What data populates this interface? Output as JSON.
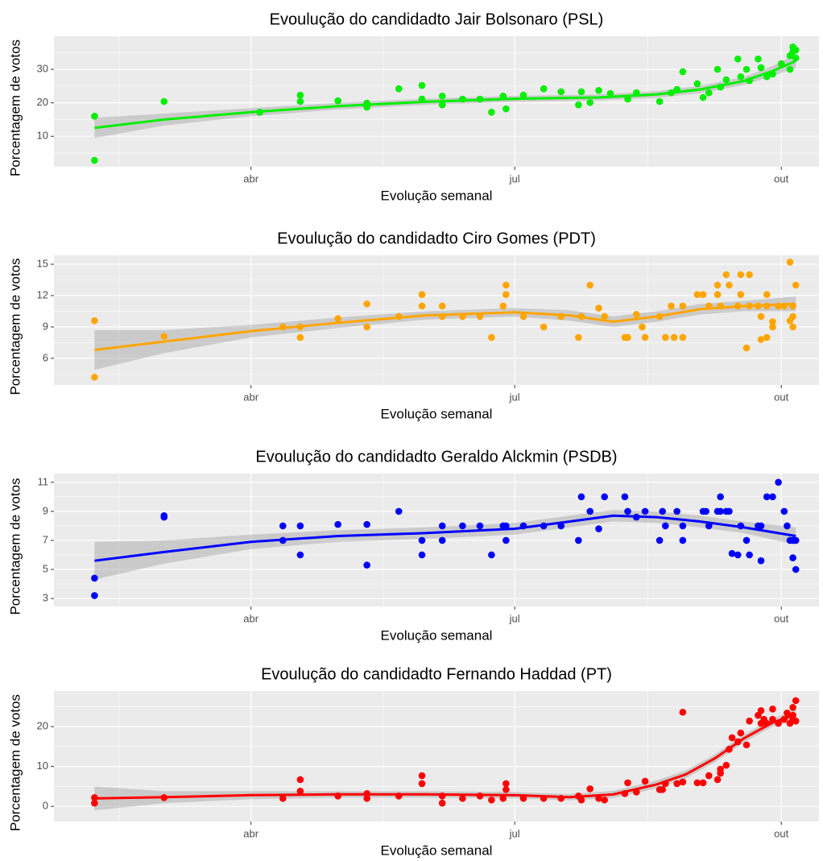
{
  "chart_data": [
    {
      "type": "scatter",
      "title": "Evoulução do candidadto Jair Bolsonaro (PSL)",
      "x_label": "Evolução semanal",
      "y_label": "Porcentagem de votos",
      "color": "#00ee00",
      "x": [
        36,
        36,
        60,
        93,
        107,
        107,
        120,
        130,
        130,
        141,
        149,
        149,
        156,
        156,
        163,
        169,
        173,
        177,
        178,
        184,
        191,
        197,
        203,
        204,
        207,
        210,
        214,
        220,
        223,
        231,
        235,
        239,
        237,
        244,
        246,
        248,
        251,
        252,
        254,
        258,
        259,
        261,
        262,
        265,
        266,
        268,
        270,
        273,
        276,
        276,
        277,
        278,
        278,
        277
      ],
      "values": [
        16,
        2.8,
        20.4,
        17.2,
        22.3,
        20.4,
        20.6,
        19.9,
        18.7,
        24.2,
        25.2,
        21.1,
        22,
        19.4,
        21.1,
        21.1,
        17.2,
        22,
        18.2,
        22.3,
        24.2,
        23.3,
        19.4,
        23.3,
        20.1,
        23.7,
        22.8,
        21.1,
        23,
        20.4,
        23,
        29.3,
        24,
        25.7,
        21.6,
        23,
        30,
        24.7,
        26.9,
        33.1,
        27.8,
        30,
        26.6,
        33.1,
        30.5,
        27.8,
        28.6,
        31.7,
        30,
        34.1,
        36.7,
        35.8,
        33.4,
        35.3
      ],
      "trend": {
        "x": [
          36,
          60,
          90,
          120,
          150,
          181,
          210,
          230,
          245,
          260,
          270,
          278
        ],
        "values": [
          12.5,
          15,
          17.2,
          19,
          20.3,
          21.2,
          21.6,
          22.5,
          24,
          26.5,
          29.5,
          32.5
        ],
        "lower": [
          9.5,
          13.2,
          16,
          18,
          19.4,
          20.3,
          20.7,
          21.5,
          22.9,
          25.3,
          28,
          30.5
        ],
        "upper": [
          15.5,
          16.8,
          18.4,
          20,
          21.2,
          22.1,
          22.5,
          23.5,
          25.1,
          27.7,
          31,
          34.5
        ]
      },
      "xlim": [
        22,
        286
      ],
      "xticks": [
        {
          "value": 90,
          "label": "abr"
        },
        {
          "value": 181,
          "label": "jul"
        },
        {
          "value": 273,
          "label": "out"
        }
      ],
      "ylim": [
        0.9,
        39.9
      ],
      "yticks": [
        10,
        20,
        30
      ],
      "grid": true
    },
    {
      "type": "scatter",
      "title": "Evoulução do candidadto Ciro Gomes (PDT)",
      "x_label": "Evolução semanal",
      "y_label": "Porcentagem de votos",
      "color": "#ffa500",
      "x": [
        36,
        36,
        60,
        101,
        107,
        107,
        120,
        130,
        130,
        141,
        149,
        149,
        156,
        156,
        163,
        169,
        173,
        177,
        178,
        178,
        184,
        191,
        197,
        203,
        204,
        207,
        210,
        212,
        219,
        220,
        223,
        225,
        226,
        231,
        233,
        235,
        236,
        239,
        239,
        244,
        246,
        248,
        251,
        251,
        252,
        254,
        255,
        258,
        259,
        259,
        261,
        262,
        262,
        265,
        266,
        266,
        268,
        268,
        268,
        270,
        270,
        272,
        274,
        276,
        277,
        277,
        277,
        278,
        276
      ],
      "values": [
        9.6,
        4.2,
        8.1,
        9,
        9,
        8,
        9.8,
        11.2,
        9,
        10,
        12.1,
        11,
        11,
        10,
        10,
        10,
        8,
        11,
        13,
        12.1,
        10,
        9,
        10,
        8,
        10,
        13,
        10.8,
        10,
        8,
        8,
        10.2,
        9,
        8,
        10,
        8,
        11,
        8,
        8,
        11,
        12.1,
        12.1,
        11,
        13,
        12.1,
        11,
        14,
        13,
        11,
        14,
        12.1,
        7,
        14,
        11,
        11,
        10,
        7.8,
        8,
        11,
        12.1,
        9.5,
        9,
        11,
        11,
        15.2,
        10,
        9,
        11,
        13,
        9.6
      ],
      "trend": {
        "x": [
          36,
          60,
          90,
          120,
          150,
          181,
          200,
          215,
          230,
          245,
          260,
          278
        ],
        "values": [
          6.8,
          7.6,
          8.6,
          9.4,
          10.1,
          10.4,
          10.1,
          9.5,
          10,
          10.7,
          11,
          11.2
        ],
        "lower": [
          4.9,
          6.5,
          8,
          8.9,
          9.7,
          10,
          9.6,
          9,
          9.5,
          10.2,
          10.5,
          10.5
        ],
        "upper": [
          8.7,
          8.7,
          9.2,
          9.9,
          10.5,
          10.8,
          10.6,
          10,
          10.5,
          11.2,
          11.5,
          11.9
        ]
      },
      "xlim": [
        22,
        286
      ],
      "xticks": [
        {
          "value": 90,
          "label": "abr"
        },
        {
          "value": 181,
          "label": "jul"
        },
        {
          "value": 273,
          "label": "out"
        }
      ],
      "ylim": [
        3.45,
        15.85
      ],
      "yticks": [
        6,
        9,
        12,
        15
      ],
      "grid": true
    },
    {
      "type": "scatter",
      "title": "Evoulução do candidadto Geraldo Alckmin (PSDB)",
      "x_label": "Evolução semanal",
      "y_label": "Porcentagem de votos",
      "color": "#0000ff",
      "x": [
        36,
        36,
        60,
        60,
        101,
        101,
        107,
        107,
        120,
        130,
        130,
        141,
        149,
        149,
        156,
        156,
        163,
        169,
        173,
        177,
        178,
        178,
        184,
        191,
        197,
        203,
        204,
        207,
        210,
        212,
        219,
        220,
        223,
        226,
        231,
        232,
        233,
        237,
        239,
        239,
        246,
        247,
        248,
        251,
        252,
        252,
        254,
        255,
        256,
        258,
        259,
        261,
        262,
        265,
        266,
        266,
        268,
        270,
        272,
        274,
        275,
        276,
        277,
        277,
        278,
        278
      ],
      "values": [
        4.4,
        3.2,
        8.7,
        8.6,
        7,
        8,
        8,
        6,
        8.1,
        8.1,
        5.3,
        9,
        7,
        6,
        8,
        7,
        8,
        8,
        6,
        8,
        8,
        7,
        8,
        8,
        8,
        7,
        10,
        9,
        7.8,
        10,
        10,
        9,
        8.6,
        9,
        7,
        9,
        8,
        9,
        7,
        8,
        9,
        9,
        8,
        9,
        10,
        9,
        9,
        9,
        6.1,
        6,
        8,
        7,
        6,
        8,
        5.6,
        8,
        10,
        10,
        11,
        9,
        8,
        7,
        7,
        5.8,
        5,
        7
      ],
      "trend": {
        "x": [
          36,
          60,
          90,
          120,
          150,
          181,
          200,
          215,
          230,
          245,
          260,
          278
        ],
        "values": [
          5.6,
          6.2,
          6.9,
          7.3,
          7.5,
          7.8,
          8.3,
          8.7,
          8.6,
          8.3,
          7.9,
          7.3
        ],
        "lower": [
          4.3,
          5.4,
          6.4,
          6.9,
          7.1,
          7.4,
          7.9,
          8.3,
          8.2,
          7.9,
          7.5,
          6.7
        ],
        "upper": [
          6.9,
          7,
          7.4,
          7.7,
          7.9,
          8.2,
          8.7,
          9.1,
          9,
          8.7,
          8.3,
          7.9
        ]
      },
      "xlim": [
        22,
        286
      ],
      "xticks": [
        {
          "value": 90,
          "label": "abr"
        },
        {
          "value": 181,
          "label": "jul"
        },
        {
          "value": 273,
          "label": "out"
        }
      ],
      "ylim": [
        2.45,
        11.6
      ],
      "yticks": [
        3,
        5,
        7,
        9,
        11
      ],
      "grid": true
    },
    {
      "type": "scatter",
      "title": "Evoulução do candidadto Fernando Haddad (PT)",
      "x_label": "Evolução semanal",
      "y_label": "Porcentagem de votos",
      "color": "#ff0000",
      "x": [
        36,
        36,
        60,
        101,
        107,
        107,
        120,
        130,
        130,
        141,
        149,
        149,
        156,
        156,
        163,
        169,
        173,
        177,
        178,
        178,
        184,
        191,
        197,
        203,
        204,
        207,
        210,
        212,
        219,
        220,
        223,
        226,
        231,
        232,
        233,
        237,
        239,
        239,
        244,
        246,
        248,
        251,
        252,
        252,
        254,
        255,
        256,
        258,
        259,
        261,
        262,
        265,
        266,
        266,
        267,
        268,
        270,
        270,
        272,
        274,
        275,
        276,
        277,
        277,
        278,
        278,
        277
      ],
      "values": [
        2.2,
        0.8,
        2.2,
        2,
        6.7,
        3.8,
        2.6,
        3.2,
        2,
        2.6,
        7.7,
        5.7,
        2.6,
        0.8,
        2,
        2.6,
        1.6,
        2,
        5.7,
        4.2,
        2,
        2,
        2,
        2.6,
        1.6,
        4.4,
        2,
        1.6,
        3.2,
        5.9,
        3.6,
        6.3,
        4.2,
        4.2,
        5.7,
        5.7,
        23.6,
        6.1,
        5.9,
        5.9,
        7.7,
        6.7,
        8.3,
        9.3,
        10.3,
        14.3,
        17.2,
        16.2,
        18.4,
        15.4,
        21.4,
        22.8,
        24,
        20.8,
        21.8,
        20.8,
        24.4,
        21.8,
        20.8,
        21.8,
        23.4,
        20.8,
        24.8,
        22.8,
        26.5,
        21.4,
        21.8
      ],
      "trend": {
        "x": [
          36,
          60,
          90,
          120,
          150,
          181,
          200,
          215,
          230,
          240,
          250,
          260,
          270,
          278
        ],
        "values": [
          2,
          2.3,
          2.8,
          3,
          3,
          2.8,
          2.3,
          3,
          5.5,
          8,
          12,
          17,
          21,
          23
        ],
        "lower": [
          -1,
          0.8,
          1.8,
          2.2,
          2.2,
          2,
          1.5,
          2.1,
          4.5,
          7,
          11,
          16,
          20,
          21.7
        ],
        "upper": [
          5,
          3.8,
          3.8,
          3.8,
          3.8,
          3.6,
          3.1,
          3.9,
          6.5,
          9,
          13,
          18,
          22,
          24.3
        ]
      },
      "xlim": [
        22,
        286
      ],
      "xticks": [
        {
          "value": 90,
          "label": "abr"
        },
        {
          "value": 181,
          "label": "jul"
        },
        {
          "value": 273,
          "label": "out"
        }
      ],
      "ylim": [
        -3.8,
        28.9
      ],
      "yticks": [
        0,
        10,
        20
      ],
      "grid": true
    }
  ]
}
